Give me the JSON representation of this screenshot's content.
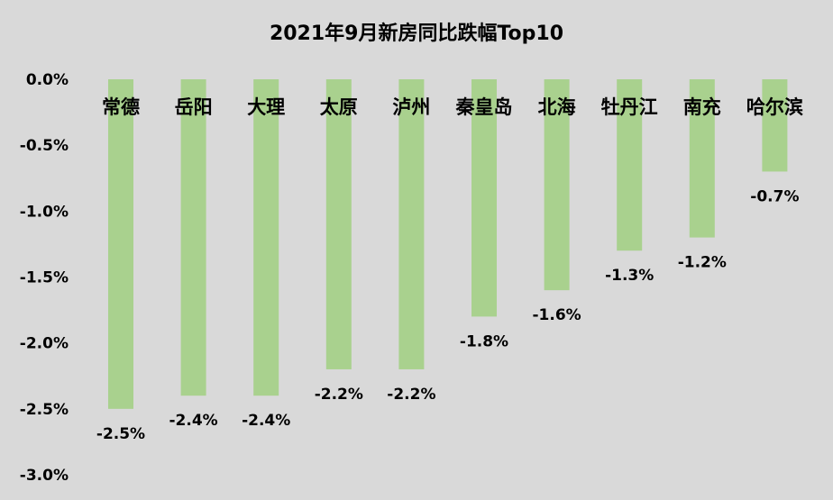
{
  "chart_data": {
    "type": "bar",
    "title": "2021年9月新房同比跌幅Top10",
    "categories": [
      "常德",
      "岳阳",
      "大理",
      "太原",
      "泸州",
      "秦皇岛",
      "北海",
      "牡丹江",
      "南充",
      "哈尔滨"
    ],
    "values": [
      -2.5,
      -2.4,
      -2.4,
      -2.2,
      -2.2,
      -1.8,
      -1.6,
      -1.3,
      -1.2,
      -0.7
    ],
    "data_labels": [
      "-2.5%",
      "-2.4%",
      "-2.4%",
      "-2.2%",
      "-2.2%",
      "-1.8%",
      "-1.6%",
      "-1.3%",
      "-1.2%",
      "-0.7%"
    ],
    "y_ticks": [
      "0.0%",
      "-0.5%",
      "-1.0%",
      "-1.5%",
      "-2.0%",
      "-2.5%",
      "-3.0%"
    ],
    "y_tick_values": [
      0,
      -0.5,
      -1.0,
      -1.5,
      -2.0,
      -2.5,
      -3.0
    ],
    "ylim": [
      -3.0,
      0
    ],
    "xlabel": "",
    "ylabel": "",
    "grid": false,
    "legend": false,
    "bar_color": "#a9d18e",
    "background_color": "#d9d9d9"
  }
}
